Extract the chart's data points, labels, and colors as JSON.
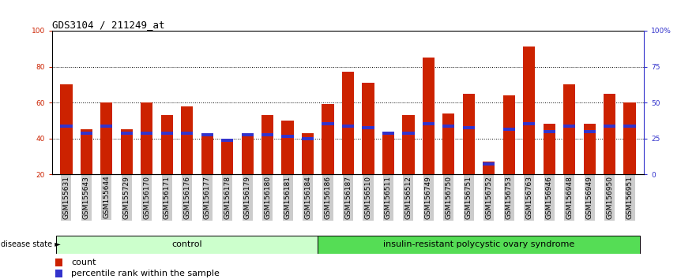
{
  "title": "GDS3104 / 211249_at",
  "samples": [
    "GSM155631",
    "GSM155643",
    "GSM155644",
    "GSM155729",
    "GSM156170",
    "GSM156171",
    "GSM156176",
    "GSM156177",
    "GSM156178",
    "GSM156179",
    "GSM156180",
    "GSM156181",
    "GSM156184",
    "GSM156186",
    "GSM156187",
    "GSM156510",
    "GSM156511",
    "GSM156512",
    "GSM156749",
    "GSM156750",
    "GSM156751",
    "GSM156752",
    "GSM156753",
    "GSM156763",
    "GSM156946",
    "GSM156948",
    "GSM156949",
    "GSM156950",
    "GSM156951"
  ],
  "count_values": [
    70,
    45,
    60,
    45,
    60,
    53,
    58,
    42,
    38,
    42,
    53,
    50,
    43,
    59,
    77,
    71,
    43,
    53,
    85,
    54,
    65,
    27,
    64,
    91,
    48,
    70,
    48,
    65,
    60
  ],
  "percentile_values": [
    47,
    43,
    47,
    43,
    43,
    43,
    43,
    42,
    39,
    42,
    42,
    41,
    40,
    48,
    47,
    46,
    43,
    43,
    48,
    47,
    46,
    26,
    45,
    48,
    44,
    47,
    44,
    47,
    47
  ],
  "group_labels": [
    "control",
    "insulin-resistant polycystic ovary syndrome"
  ],
  "group_sizes": [
    13,
    16
  ],
  "ylim_left": [
    20,
    100
  ],
  "yticks_left": [
    20,
    40,
    60,
    80,
    100
  ],
  "ytick_labels_right": [
    "0",
    "25",
    "50",
    "75",
    "100%"
  ],
  "bar_color": "#cc2200",
  "percentile_color": "#3333cc",
  "control_color": "#ccffcc",
  "pcos_color": "#55dd55",
  "xtick_bg": "#cccccc",
  "bar_width": 0.6,
  "title_fontsize": 9,
  "tick_fontsize": 6.5,
  "legend_fontsize": 8
}
